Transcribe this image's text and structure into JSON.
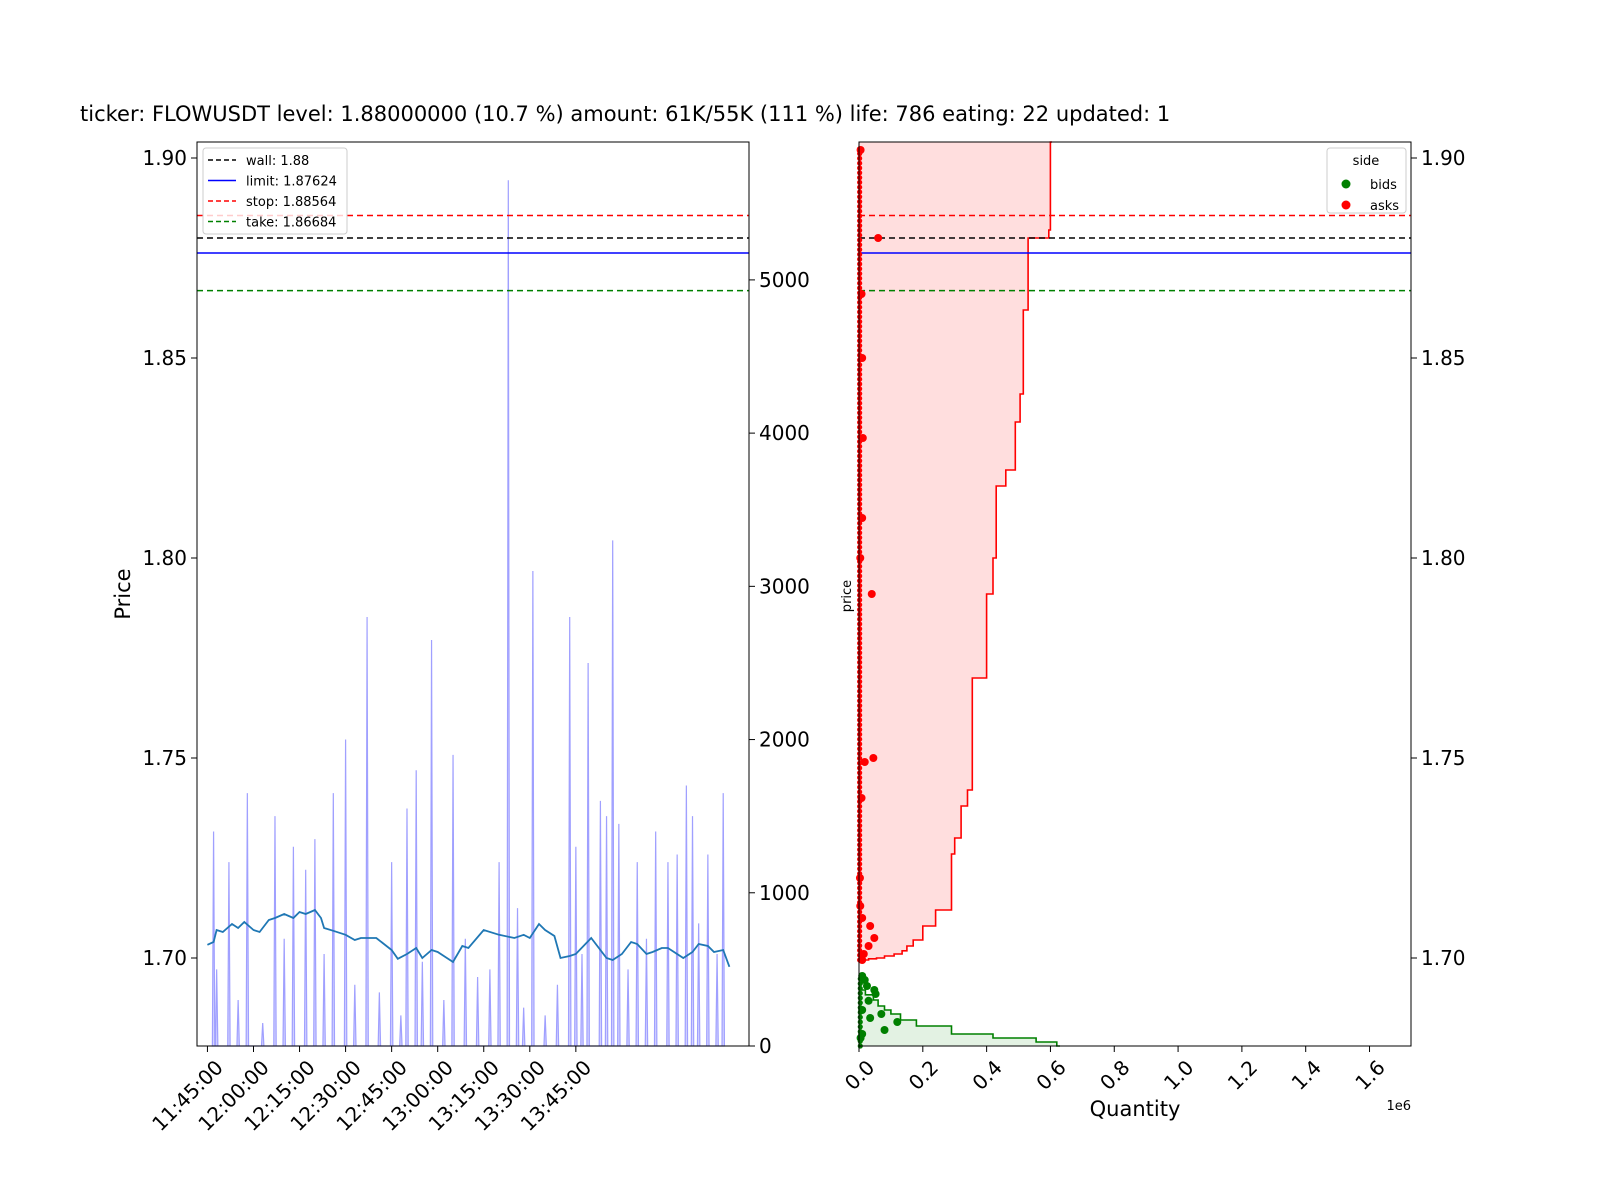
{
  "title": "ticker: FLOWUSDT level: 1.88000000 (10.7 %) amount: 61K/55K (111 %)  life: 786 eating: 22 updated: 1",
  "colors": {
    "wall": "#000000",
    "limit": "#0000ff",
    "stop": "#ff0000",
    "take": "#008000",
    "price_line": "#1f77b4",
    "volume": "#a0a0ff",
    "asks": "#ff0000",
    "bids": "#008000",
    "asks_fill": "#ffdede",
    "bids_fill": "#e3f2e3"
  },
  "chart_data": [
    {
      "type": "line",
      "ylabel": "Price",
      "ylim": [
        1.678,
        1.904
      ],
      "y_ticks": [
        "1.70",
        "1.75",
        "1.80",
        "1.85",
        "1.90"
      ],
      "x_ticks": [
        "11:45:00",
        "12:00:00",
        "12:15:00",
        "12:30:00",
        "12:45:00",
        "13:00:00",
        "13:15:00",
        "13:30:00",
        "13:45:00"
      ],
      "y2lim": [
        0,
        5900
      ],
      "y2_ticks": [
        "0",
        "1000",
        "2000",
        "3000",
        "4000",
        "5000"
      ],
      "legend_position": "top-left",
      "legend": [
        "wall: 1.88",
        "limit: 1.87624",
        "stop: 1.88564",
        "take: 1.86684"
      ],
      "levels": {
        "wall": 1.88,
        "limit": 1.87624,
        "stop": 1.88564,
        "take": 1.86684
      },
      "price_series": {
        "x_minutes": [
          0,
          2,
          3,
          5,
          8,
          10,
          12,
          15,
          17,
          20,
          22,
          25,
          28,
          30,
          32,
          35,
          37,
          38,
          41,
          45,
          48,
          50,
          55,
          60,
          62,
          65,
          68,
          70,
          73,
          75,
          78,
          80,
          83,
          85,
          90,
          95,
          100,
          103,
          105,
          108,
          110,
          113,
          115,
          118,
          120,
          125,
          130,
          132,
          135,
          138,
          140,
          143,
          145,
          148,
          150,
          155,
          158,
          160,
          163,
          165,
          168,
          170
        ],
        "values": [
          1.7033,
          1.704,
          1.707,
          1.7065,
          1.7085,
          1.7075,
          1.709,
          1.707,
          1.7065,
          1.7095,
          1.71,
          1.711,
          1.71,
          1.7115,
          1.711,
          1.712,
          1.71,
          1.7075,
          1.7068,
          1.7058,
          1.7045,
          1.705,
          1.705,
          1.702,
          1.6998,
          1.701,
          1.7025,
          1.7,
          1.702,
          1.7015,
          1.7,
          1.699,
          1.703,
          1.7025,
          1.707,
          1.7058,
          1.705,
          1.7058,
          1.705,
          1.7085,
          1.707,
          1.7055,
          1.7,
          1.7005,
          1.701,
          1.705,
          1.7,
          1.6995,
          1.701,
          1.704,
          1.7035,
          1.701,
          1.7015,
          1.7025,
          1.7025,
          1.7,
          1.7015,
          1.7035,
          1.703,
          1.7015,
          1.702,
          1.6978
        ]
      },
      "volume_series": {
        "x_minutes": [
          2,
          3,
          7,
          10,
          13,
          18,
          22,
          25,
          28,
          32,
          35,
          38,
          41,
          45,
          48,
          52,
          56,
          60,
          63,
          65,
          68,
          70,
          73,
          77,
          80,
          84,
          88,
          92,
          95,
          98,
          101,
          103,
          106,
          110,
          114,
          118,
          120,
          122,
          124,
          128,
          130,
          132,
          134,
          137,
          140,
          143,
          146,
          150,
          153,
          156,
          158,
          160,
          163,
          166,
          168
        ],
        "values": [
          1400,
          500,
          1200,
          300,
          1650,
          150,
          1500,
          700,
          1300,
          1150,
          1350,
          600,
          1650,
          2000,
          400,
          2800,
          350,
          1200,
          200,
          1550,
          1800,
          550,
          2650,
          300,
          1900,
          700,
          450,
          500,
          1200,
          5650,
          900,
          250,
          3100,
          200,
          400,
          2800,
          1300,
          600,
          2500,
          1600,
          1500,
          3300,
          1450,
          500,
          1200,
          700,
          1400,
          1200,
          1250,
          1700,
          1500,
          800,
          1250,
          600,
          1650
        ]
      }
    },
    {
      "type": "area",
      "xlabel": "Quantity",
      "ylabel": "price",
      "x_multiplier": "1e6",
      "xlim": [
        0,
        1.73
      ],
      "x_ticks": [
        "0.0",
        "0.2",
        "0.4",
        "0.6",
        "0.8",
        "1.0",
        "1.2",
        "1.4",
        "1.6"
      ],
      "ylim": [
        1.678,
        1.904
      ],
      "y_ticks": [
        "1.70",
        "1.75",
        "1.80",
        "1.85",
        "1.90"
      ],
      "legend_title": "side",
      "legend_position": "top-right",
      "legend": [
        "bids",
        "asks"
      ],
      "asks_cumulative": {
        "price": [
          1.699,
          1.6992,
          1.6995,
          1.6998,
          1.7,
          1.7005,
          1.701,
          1.7018,
          1.703,
          1.7045,
          1.708,
          1.712,
          1.726,
          1.73,
          1.738,
          1.742,
          1.77,
          1.791,
          1.8,
          1.818,
          1.822,
          1.834,
          1.841,
          1.862,
          1.88,
          1.882,
          1.904
        ],
        "quantity": [
          0.005,
          0.012,
          0.03,
          0.055,
          0.08,
          0.11,
          0.135,
          0.15,
          0.17,
          0.2,
          0.24,
          0.29,
          0.3,
          0.32,
          0.34,
          0.355,
          0.4,
          0.42,
          0.43,
          0.46,
          0.49,
          0.505,
          0.515,
          0.53,
          0.595,
          0.6,
          0.605
        ]
      },
      "bids_cumulative": {
        "price": [
          1.693,
          1.692,
          1.6908,
          1.6895,
          1.688,
          1.687,
          1.686,
          1.6845,
          1.683,
          1.681,
          1.68,
          1.679,
          1.678
        ],
        "quantity": [
          0.005,
          0.02,
          0.045,
          0.06,
          0.08,
          0.1,
          0.13,
          0.18,
          0.29,
          0.42,
          0.555,
          0.62,
          0.63
        ]
      },
      "asks_points": {
        "price": [
          1.902,
          1.88,
          1.866,
          1.85,
          1.83,
          1.81,
          1.8,
          1.791,
          1.75,
          1.749,
          1.74,
          1.72,
          1.713,
          1.71,
          1.708,
          1.705,
          1.703,
          1.701,
          1.6995
        ],
        "quantity": [
          0.005,
          0.06,
          0.008,
          0.01,
          0.012,
          0.01,
          0.004,
          0.04,
          0.045,
          0.018,
          0.008,
          0.003,
          0.004,
          0.01,
          0.035,
          0.048,
          0.03,
          0.015,
          0.01
        ]
      },
      "bids_points": {
        "price": [
          1.6955,
          1.6945,
          1.693,
          1.692,
          1.691,
          1.6893,
          1.687,
          1.686,
          1.685,
          1.684,
          1.682,
          1.681,
          1.68
        ],
        "quantity": [
          0.01,
          0.018,
          0.025,
          0.048,
          0.052,
          0.03,
          0.01,
          0.07,
          0.035,
          0.12,
          0.08,
          0.01,
          0.005
        ]
      }
    }
  ]
}
